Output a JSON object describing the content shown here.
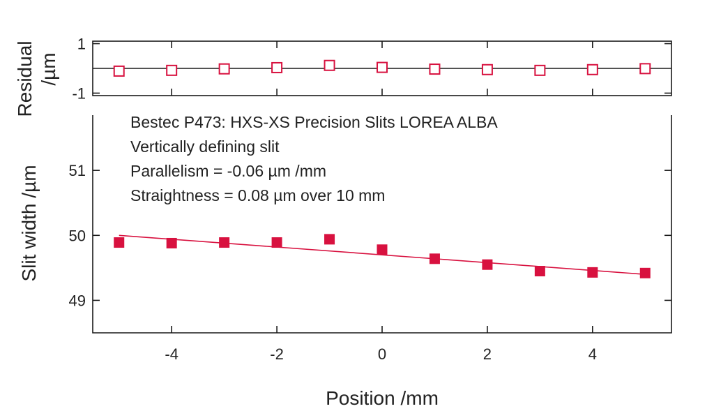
{
  "colors": {
    "series": "#d8113f",
    "axis": "#1a1a1a",
    "text": "#222222"
  },
  "chart_data": [
    {
      "type": "scatter",
      "panel": "residual",
      "ylabel_line1": "Residual",
      "ylabel_line2": "/µm",
      "xlim": [
        -5.5,
        5.5
      ],
      "ylim": [
        -1.1,
        1.1
      ],
      "yticks": [
        1,
        -1
      ],
      "ytick_labels": [
        "1",
        "-1"
      ],
      "xticks": [
        -4,
        -2,
        0,
        2,
        4
      ],
      "zero_line": true,
      "series": [
        {
          "marker": "open-square",
          "x": [
            -5,
            -4,
            -3,
            -2,
            -1,
            0,
            1,
            2,
            3,
            4,
            5
          ],
          "y": [
            -0.11,
            -0.08,
            -0.02,
            0.03,
            0.12,
            0.04,
            -0.03,
            -0.05,
            -0.08,
            -0.05,
            -0.01
          ]
        }
      ]
    },
    {
      "type": "scatter",
      "panel": "main",
      "xlabel": "Position /mm",
      "ylabel": "Slit width /µm",
      "xlim": [
        -5.5,
        5.5
      ],
      "ylim": [
        48.5,
        51.85
      ],
      "xticks": [
        -4,
        -2,
        0,
        2,
        4
      ],
      "xtick_labels": [
        "-4",
        "-2",
        "0",
        "2",
        "4"
      ],
      "yticks": [
        49,
        50,
        51
      ],
      "ytick_labels": [
        "49",
        "50",
        "51"
      ],
      "annotations": [
        "Bestec P473: HXS-XS Precision Slits LOREA ALBA",
        "Vertically defining slit",
        "Parallelism =  -0.06 µm /mm",
        "Straightness = 0.08 µm over 10 mm"
      ],
      "fit_line": {
        "x": [
          -5,
          5
        ],
        "y": [
          50.0,
          49.4
        ]
      },
      "series": [
        {
          "marker": "filled-square",
          "x": [
            -5,
            -4,
            -3,
            -2,
            -1,
            0,
            1,
            2,
            3,
            4,
            5
          ],
          "y": [
            49.89,
            49.88,
            49.89,
            49.89,
            49.94,
            49.78,
            49.64,
            49.55,
            49.45,
            49.43,
            49.42
          ]
        }
      ]
    }
  ]
}
